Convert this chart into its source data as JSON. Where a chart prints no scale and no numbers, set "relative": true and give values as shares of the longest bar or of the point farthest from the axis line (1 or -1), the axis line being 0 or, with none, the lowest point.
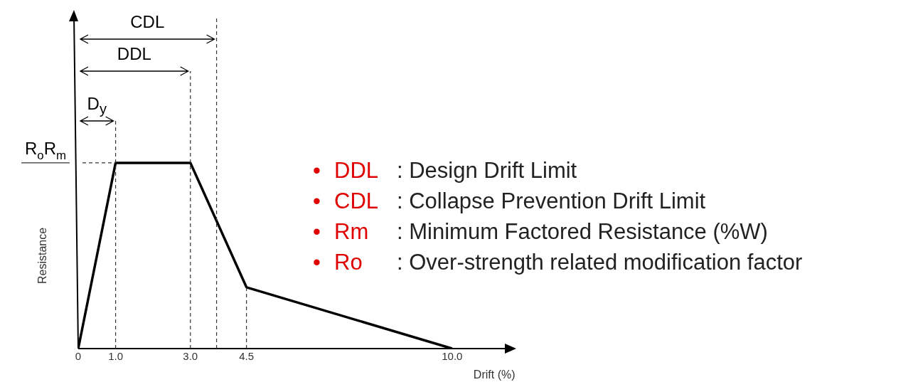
{
  "chart_data": {
    "type": "line",
    "xlabel": "Drift (%)",
    "ylabel": "Resistance",
    "relative": true,
    "x": [
      0,
      1,
      3,
      4.5,
      10
    ],
    "series": [
      {
        "color": "#000000",
        "values": [
          0,
          1,
          1,
          0.33,
          0
        ]
      }
    ],
    "xlim": [
      0,
      11.6
    ],
    "xticks": [
      0,
      {
        "value": 1,
        "label": "1.0"
      },
      {
        "value": 3,
        "label": "3.0"
      },
      4.5,
      {
        "value": 10,
        "label": "10.0"
      }
    ],
    "marker": "none",
    "grid": false,
    "legend": false,
    "ref_lines": [
      {
        "axis": "x",
        "value": 1,
        "line_style": "dashed"
      },
      {
        "axis": "x",
        "value": 3,
        "line_style": "dashed"
      },
      {
        "axis": "x",
        "value": 3.7,
        "line_style": "dashed"
      },
      {
        "axis": "x",
        "value": 4.5,
        "line_style": "dashed"
      },
      {
        "axis": "y",
        "value": 1,
        "label": "R$_{o}$R$_{m}$",
        "line_style": "dashed"
      }
    ],
    "annotations": [
      "D$_{y}$",
      "DDL",
      "CDL",
      "• DDL : Design Drift Limit",
      "• CDL : Collapse Prevention Drift Limit",
      "• Rm : Minimum Factored Resistance (%W)",
      "• Ro : Over-strength related modification factor"
    ]
  }
}
